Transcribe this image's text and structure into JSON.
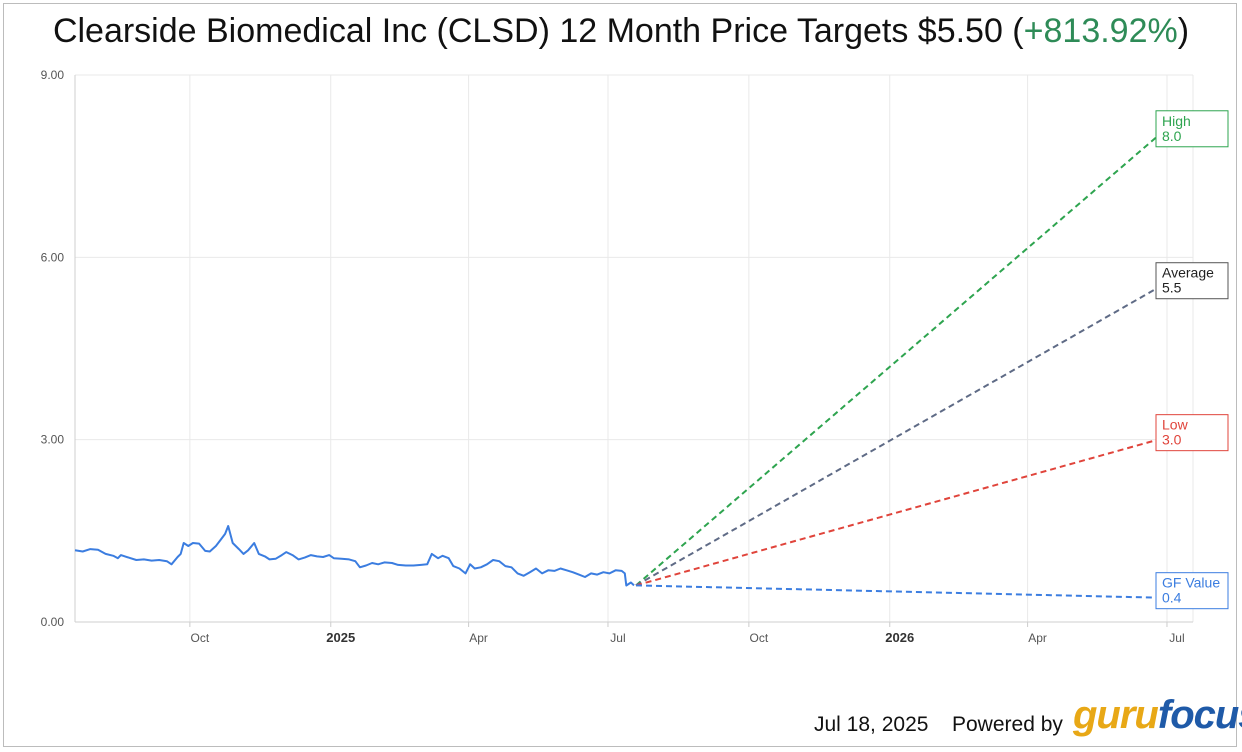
{
  "title": {
    "main": "Clearside Biomedical Inc (CLSD) 12 Month Price Targets $5.50 (",
    "change": "+813.92%",
    "close": ")"
  },
  "footer": {
    "date": "Jul 18, 2025",
    "powered_by": "Powered by",
    "logo_guru": "guru",
    "logo_focus": "focus"
  },
  "chart_data": {
    "type": "line",
    "title": "Clearside Biomedical Inc (CLSD) 12 Month Price Targets $5.50 (+813.92%)",
    "x_range": [
      "2024-07-18",
      "2026-07-18"
    ],
    "ylim": [
      0,
      9
    ],
    "y_ticks": [
      "0.00",
      "3.00",
      "6.00",
      "9.00"
    ],
    "x_ticks": [
      {
        "label": "Oct",
        "date": "2024-10-01",
        "bold": false
      },
      {
        "label": "2025",
        "date": "2025-01-01",
        "bold": true
      },
      {
        "label": "Apr",
        "date": "2025-04-01",
        "bold": false
      },
      {
        "label": "Jul",
        "date": "2025-07-01",
        "bold": false
      },
      {
        "label": "Oct",
        "date": "2025-10-01",
        "bold": false
      },
      {
        "label": "2026",
        "date": "2026-01-01",
        "bold": true
      },
      {
        "label": "Apr",
        "date": "2026-04-01",
        "bold": false
      },
      {
        "label": "Jul",
        "date": "2026-07-01",
        "bold": false
      }
    ],
    "grid": true,
    "colors": {
      "price": "#3b7de0",
      "high": "#2ea44f",
      "average": "#5f6b86",
      "low": "#e0443b",
      "gf_value": "#3b7de0",
      "average_box_border": "#555555",
      "average_text": "#222222"
    },
    "price_history": {
      "name": "Price",
      "points": [
        [
          "2024-07-18",
          1.18
        ],
        [
          "2024-07-23",
          1.16
        ],
        [
          "2024-07-28",
          1.2
        ],
        [
          "2024-08-02",
          1.19
        ],
        [
          "2024-08-07",
          1.12
        ],
        [
          "2024-08-12",
          1.09
        ],
        [
          "2024-08-15",
          1.05
        ],
        [
          "2024-08-17",
          1.1
        ],
        [
          "2024-08-22",
          1.06
        ],
        [
          "2024-08-27",
          1.02
        ],
        [
          "2024-09-01",
          1.03
        ],
        [
          "2024-09-06",
          1.01
        ],
        [
          "2024-09-11",
          1.02
        ],
        [
          "2024-09-16",
          1.0
        ],
        [
          "2024-09-19",
          0.95
        ],
        [
          "2024-09-23",
          1.07
        ],
        [
          "2024-09-25",
          1.12
        ],
        [
          "2024-09-27",
          1.3
        ],
        [
          "2024-09-30",
          1.25
        ],
        [
          "2024-10-03",
          1.3
        ],
        [
          "2024-10-07",
          1.29
        ],
        [
          "2024-10-11",
          1.17
        ],
        [
          "2024-10-14",
          1.16
        ],
        [
          "2024-10-18",
          1.25
        ],
        [
          "2024-10-21",
          1.35
        ],
        [
          "2024-10-24",
          1.45
        ],
        [
          "2024-10-26",
          1.58
        ],
        [
          "2024-10-29",
          1.3
        ],
        [
          "2024-11-02",
          1.2
        ],
        [
          "2024-11-05",
          1.12
        ],
        [
          "2024-11-08",
          1.18
        ],
        [
          "2024-11-12",
          1.3
        ],
        [
          "2024-11-15",
          1.12
        ],
        [
          "2024-11-19",
          1.08
        ],
        [
          "2024-11-22",
          1.03
        ],
        [
          "2024-11-26",
          1.04
        ],
        [
          "2024-11-30",
          1.1
        ],
        [
          "2024-12-03",
          1.15
        ],
        [
          "2024-12-07",
          1.1
        ],
        [
          "2024-12-11",
          1.03
        ],
        [
          "2024-12-15",
          1.06
        ],
        [
          "2024-12-19",
          1.1
        ],
        [
          "2024-12-23",
          1.08
        ],
        [
          "2024-12-27",
          1.07
        ],
        [
          "2024-12-31",
          1.1
        ],
        [
          "2025-01-03",
          1.05
        ],
        [
          "2025-01-08",
          1.04
        ],
        [
          "2025-01-13",
          1.03
        ],
        [
          "2025-01-17",
          1.0
        ],
        [
          "2025-01-20",
          0.9
        ],
        [
          "2025-01-24",
          0.93
        ],
        [
          "2025-01-28",
          0.97
        ],
        [
          "2025-02-01",
          0.95
        ],
        [
          "2025-02-05",
          0.98
        ],
        [
          "2025-02-10",
          0.97
        ],
        [
          "2025-02-14",
          0.94
        ],
        [
          "2025-02-19",
          0.93
        ],
        [
          "2025-02-24",
          0.93
        ],
        [
          "2025-03-01",
          0.94
        ],
        [
          "2025-03-05",
          0.95
        ],
        [
          "2025-03-08",
          1.12
        ],
        [
          "2025-03-12",
          1.05
        ],
        [
          "2025-03-15",
          1.09
        ],
        [
          "2025-03-19",
          1.05
        ],
        [
          "2025-03-22",
          0.92
        ],
        [
          "2025-03-26",
          0.88
        ],
        [
          "2025-03-30",
          0.8
        ],
        [
          "2025-04-02",
          0.95
        ],
        [
          "2025-04-05",
          0.88
        ],
        [
          "2025-04-09",
          0.9
        ],
        [
          "2025-04-13",
          0.95
        ],
        [
          "2025-04-17",
          1.02
        ],
        [
          "2025-04-21",
          1.0
        ],
        [
          "2025-04-25",
          0.92
        ],
        [
          "2025-04-29",
          0.9
        ],
        [
          "2025-05-03",
          0.8
        ],
        [
          "2025-05-07",
          0.76
        ],
        [
          "2025-05-11",
          0.82
        ],
        [
          "2025-05-15",
          0.88
        ],
        [
          "2025-05-19",
          0.8
        ],
        [
          "2025-05-23",
          0.85
        ],
        [
          "2025-05-27",
          0.84
        ],
        [
          "2025-05-31",
          0.88
        ],
        [
          "2025-06-04",
          0.85
        ],
        [
          "2025-06-08",
          0.82
        ],
        [
          "2025-06-12",
          0.78
        ],
        [
          "2025-06-16",
          0.74
        ],
        [
          "2025-06-20",
          0.8
        ],
        [
          "2025-06-24",
          0.78
        ],
        [
          "2025-06-28",
          0.82
        ],
        [
          "2025-07-02",
          0.8
        ],
        [
          "2025-07-06",
          0.85
        ],
        [
          "2025-07-10",
          0.84
        ],
        [
          "2025-07-12",
          0.8
        ],
        [
          "2025-07-13",
          0.6
        ],
        [
          "2025-07-16",
          0.65
        ],
        [
          "2025-07-18",
          0.602
        ]
      ]
    },
    "forecast": {
      "start": {
        "date": "2025-07-18",
        "value": 0.602
      },
      "end_date": "2026-07-18",
      "targets": [
        {
          "key": "high",
          "name": "High",
          "value": 8.0,
          "value_label": "8.0"
        },
        {
          "key": "average",
          "name": "Average",
          "value": 5.5,
          "value_label": "5.5"
        },
        {
          "key": "low",
          "name": "Low",
          "value": 3.0,
          "value_label": "3.0"
        },
        {
          "key": "gf_value",
          "name": "GF Value",
          "value": 0.4,
          "value_label": "0.4"
        }
      ]
    }
  }
}
